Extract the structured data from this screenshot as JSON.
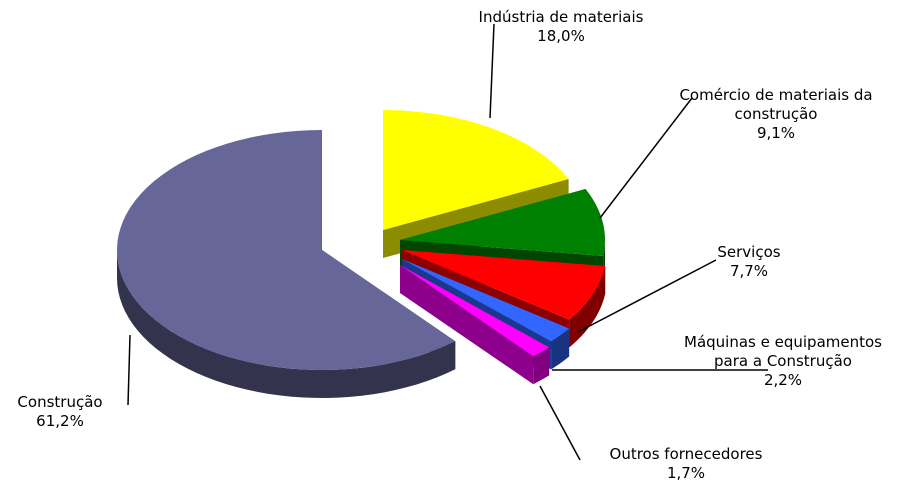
{
  "chart_data": {
    "type": "pie",
    "categories": [
      "Indústria de materiais",
      "Comércio de materiais da construção",
      "Serviços",
      "Máquinas e equipamentos para a Construção",
      "Outros fornecedores",
      "Construção"
    ],
    "values": [
      18.0,
      9.1,
      7.7,
      2.2,
      1.7,
      61.2
    ],
    "value_labels": [
      "18,0%",
      "9,1%",
      "7,7%",
      "2,2%",
      "1,7%",
      "61,2%"
    ],
    "colors": [
      "#ffff00",
      "#008000",
      "#ff0000",
      "#3366ff",
      "#ff00ff",
      "#666699"
    ]
  }
}
